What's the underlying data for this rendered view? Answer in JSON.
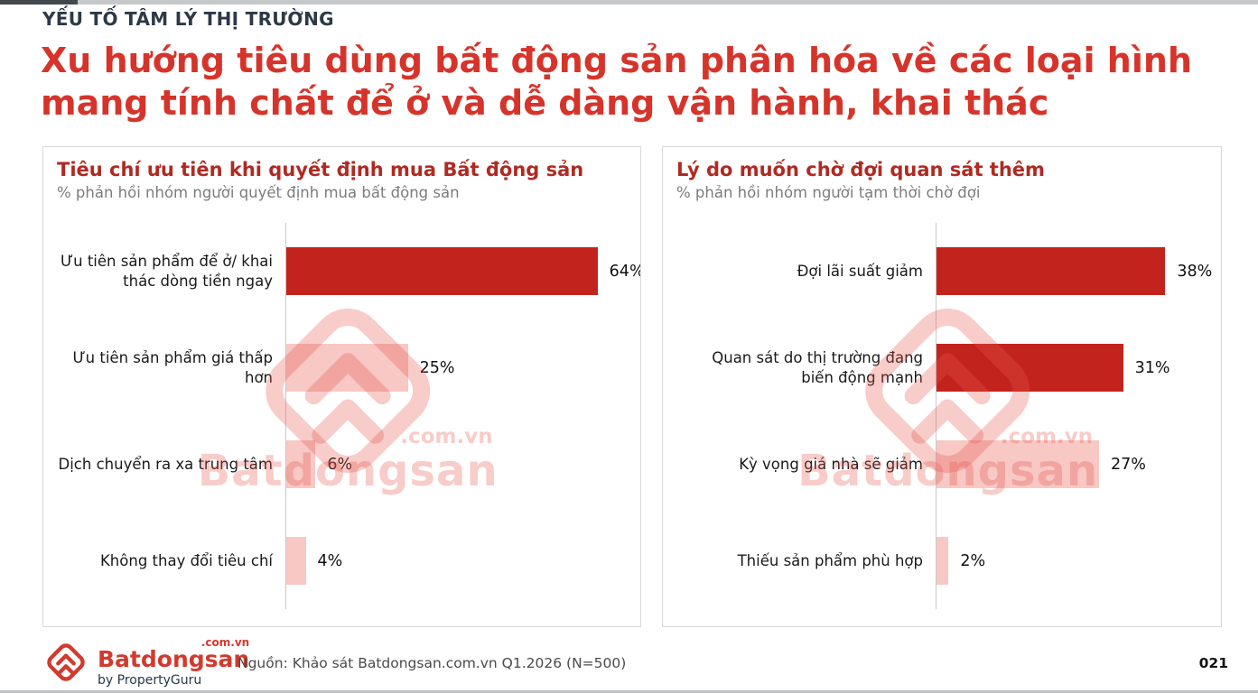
{
  "page": {
    "kicker": "YẾU TỐ TÂM LÝ THỊ TRƯỜNG",
    "title_line1": "Xu hướng tiêu dùng bất động sản phân hóa về các loại hình",
    "title_line2": "mang tính chất để ở và dễ dàng vận hành, khai thác",
    "page_number": "021"
  },
  "colors": {
    "accent_red": "#d6342b",
    "panel_title_red": "#b02a22",
    "bar_strong": "#c3231d",
    "bar_light": "#f8c8c5",
    "watermark_pink": "rgba(227,86,77,0.30)",
    "brand_red": "#d23a2e",
    "kicker_navy": "#2d3947"
  },
  "watermark": {
    "brand": "Batdongsan",
    "domain": ".com.vn"
  },
  "footer": {
    "source": "Nguồn: Khảo sát Batdongsan.com.vn Q1.2026 (N=500)",
    "logo": {
      "brand": "Batdongsan",
      "domain": ".com.vn",
      "byline": "by PropertyGuru"
    }
  },
  "chart_data": [
    {
      "type": "bar",
      "orientation": "horizontal",
      "title": "Tiêu chí ưu tiên khi quyết định mua Bất động sản",
      "subtitle": "% phản hồi nhóm người quyết định mua bất động sản",
      "categories": [
        "Ưu tiên sản phẩm để ở/ khai thác dòng tiền ngay",
        "Ưu tiên sản phẩm giá thấp hơn",
        "Dịch chuyển ra xa trung tâm",
        "Không thay đổi tiêu chí"
      ],
      "values": [
        64,
        25,
        6,
        4
      ],
      "value_labels": [
        "64%",
        "25%",
        "6%",
        "4%"
      ],
      "emphasized": [
        true,
        false,
        false,
        false
      ],
      "xlim": [
        0,
        70
      ],
      "grid": false,
      "legend": "none"
    },
    {
      "type": "bar",
      "orientation": "horizontal",
      "title": "Lý do muốn chờ đợi quan sát thêm",
      "subtitle": "% phản hồi nhóm người tạm thời chờ đợi",
      "categories": [
        "Đợi lãi suất giảm",
        "Quan sát do thị trường đang biến động mạnh",
        "Kỳ vọng giá nhà sẽ giảm",
        "Thiếu sản phẩm phù hợp"
      ],
      "values": [
        38,
        31,
        27,
        2
      ],
      "value_labels": [
        "38%",
        "31%",
        "27%",
        "2%"
      ],
      "emphasized": [
        true,
        true,
        false,
        false
      ],
      "xlim": [
        0,
        45
      ],
      "grid": false,
      "legend": "none"
    }
  ]
}
